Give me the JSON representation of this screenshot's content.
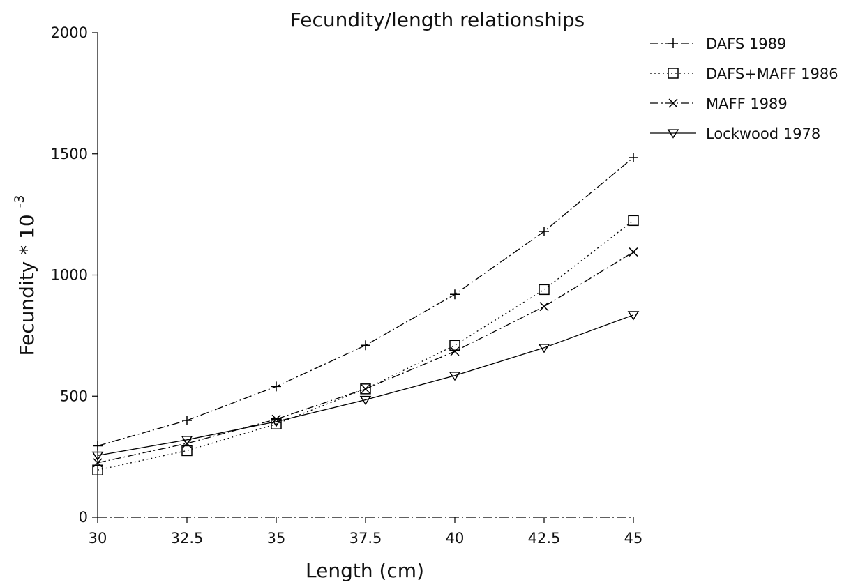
{
  "chart_data": {
    "type": "line",
    "title": "Fecundity/length relationships",
    "xlabel": "Length (cm)",
    "ylabel": "Fecundity * 10",
    "ylabel_exponent": "-3",
    "x": [
      30,
      32.5,
      35,
      37.5,
      40,
      42.5,
      45
    ],
    "x_tick_labels": [
      "30",
      "32.5",
      "35",
      "37.5",
      "40",
      "42.5",
      "45"
    ],
    "y_ticks": [
      0,
      500,
      1000,
      1500,
      2000
    ],
    "y_tick_labels": [
      "0",
      "500",
      "1000",
      "1500",
      "2000"
    ],
    "xlim": [
      30,
      45
    ],
    "ylim": [
      0,
      2000
    ],
    "grid": false,
    "legend_position": "top-right outside",
    "series": [
      {
        "name": "DAFS 1989",
        "marker": "plus",
        "line_style": "dashdot",
        "values": [
          295,
          400,
          540,
          710,
          920,
          1180,
          1485
        ]
      },
      {
        "name": "DAFS+MAFF 1986",
        "marker": "square",
        "line_style": "dotted",
        "values": [
          195,
          275,
          385,
          530,
          710,
          940,
          1225
        ]
      },
      {
        "name": "MAFF 1989",
        "marker": "x",
        "line_style": "dashdot",
        "values": [
          225,
          305,
          405,
          530,
          685,
          870,
          1095
        ]
      },
      {
        "name": "Lockwood 1978",
        "marker": "triangle-down",
        "line_style": "solid",
        "values": [
          255,
          320,
          395,
          485,
          585,
          700,
          835
        ]
      }
    ]
  }
}
